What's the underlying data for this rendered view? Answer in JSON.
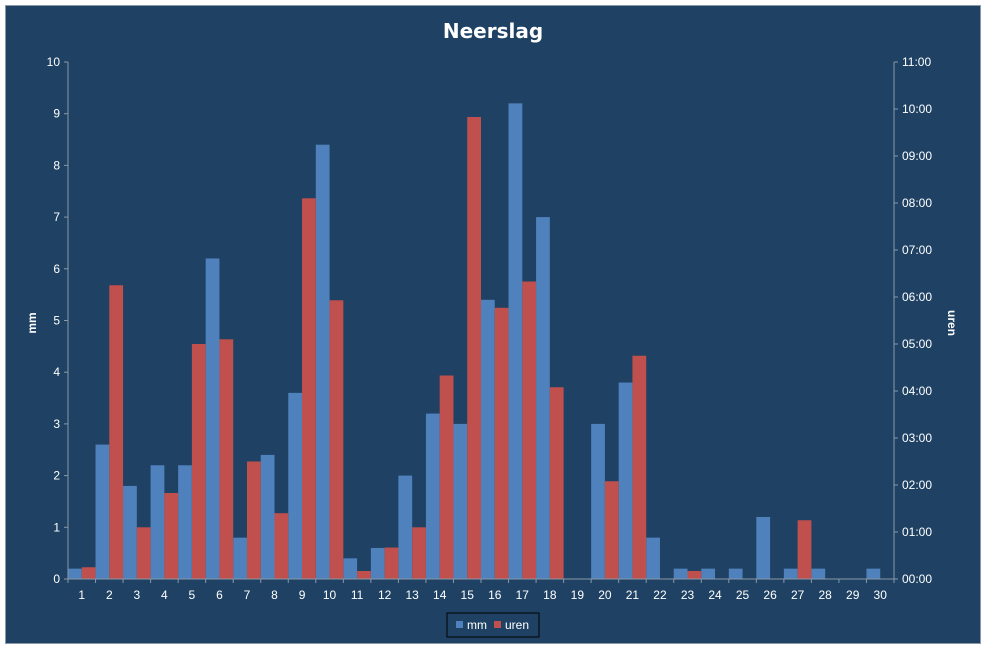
{
  "chart_data": {
    "type": "bar",
    "title": "Neerslag",
    "xlabel": "",
    "ylabel_left": "mm",
    "ylabel_right": "uren",
    "ylim_left": [
      0,
      10
    ],
    "ylim_right_hours": [
      0,
      11
    ],
    "left_ticks": [
      "0",
      "1",
      "2",
      "3",
      "4",
      "5",
      "6",
      "7",
      "8",
      "9",
      "10"
    ],
    "right_ticks": [
      "00:00",
      "01:00",
      "02:00",
      "03:00",
      "04:00",
      "05:00",
      "06:00",
      "07:00",
      "08:00",
      "09:00",
      "10:00",
      "11:00"
    ],
    "categories": [
      "1",
      "2",
      "3",
      "4",
      "5",
      "6",
      "7",
      "8",
      "9",
      "10",
      "11",
      "12",
      "13",
      "14",
      "15",
      "16",
      "17",
      "18",
      "19",
      "20",
      "21",
      "22",
      "23",
      "24",
      "25",
      "26",
      "27",
      "28",
      "29",
      "30"
    ],
    "series": [
      {
        "name": "mm",
        "axis": "left",
        "color": "#4f81bd",
        "values": [
          0.2,
          2.6,
          1.8,
          2.2,
          2.2,
          6.2,
          0.8,
          2.4,
          3.6,
          8.4,
          0.4,
          0.6,
          2.0,
          3.2,
          3.0,
          5.4,
          9.2,
          7.0,
          0,
          3.0,
          3.8,
          0.8,
          0.2,
          0.2,
          0.2,
          1.2,
          0.2,
          0.2,
          0,
          0.2
        ]
      },
      {
        "name": "uren",
        "axis": "right",
        "color": "#c0504d",
        "values": [
          0.25,
          6.25,
          1.1,
          1.83,
          5.0,
          5.1,
          2.5,
          1.4,
          8.1,
          5.93,
          0.17,
          0.67,
          1.1,
          4.33,
          9.83,
          5.77,
          6.33,
          4.08,
          0,
          2.08,
          4.75,
          0,
          0.17,
          0,
          0,
          0,
          1.25,
          0,
          0,
          0
        ]
      }
    ],
    "grid": false,
    "legend_position": "bottom"
  }
}
